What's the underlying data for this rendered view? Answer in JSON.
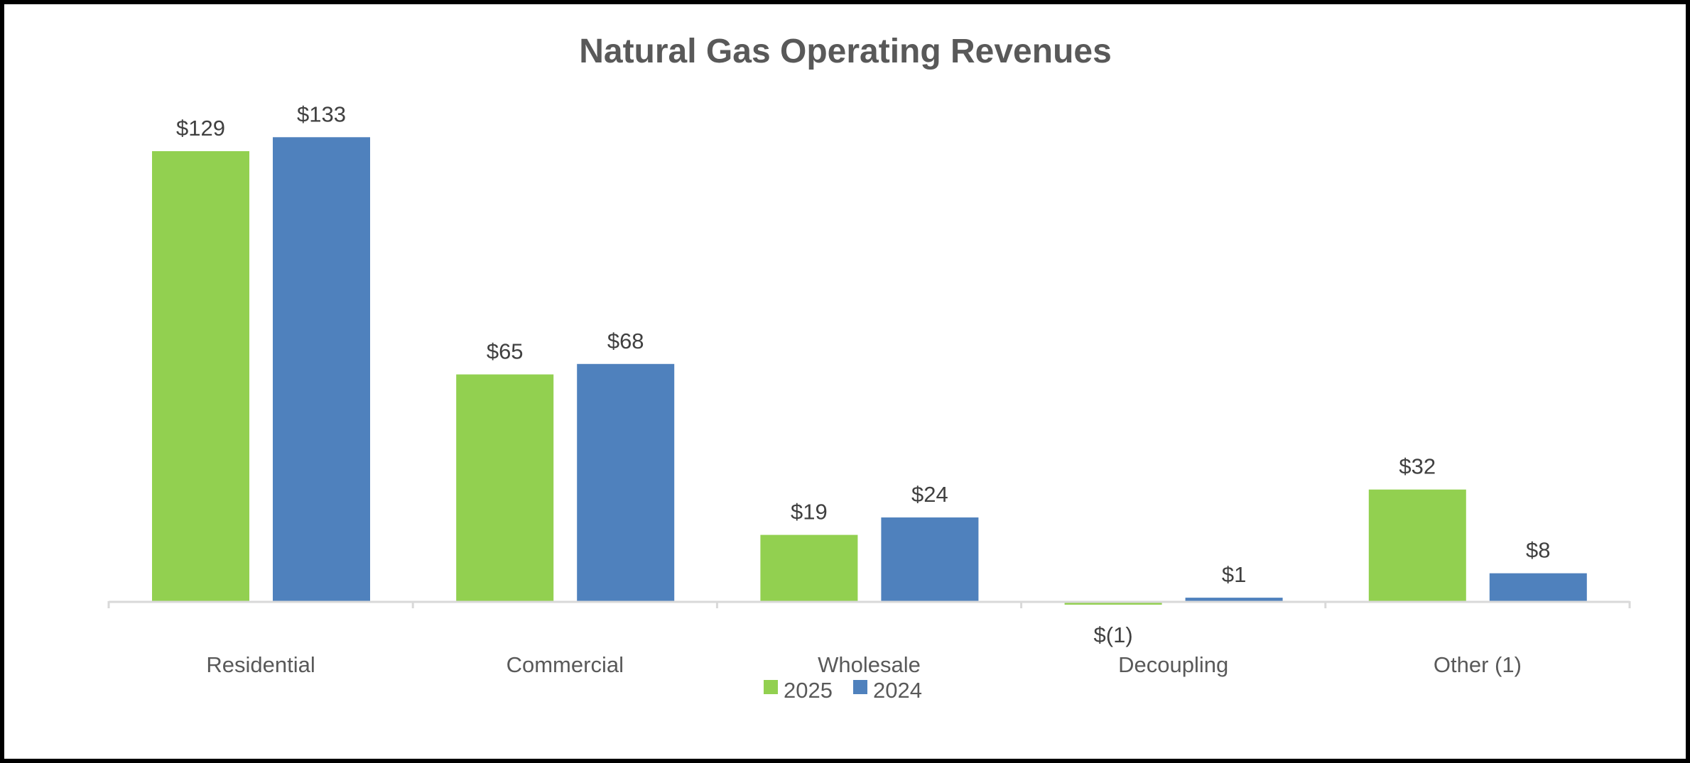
{
  "chart_data": {
    "type": "bar",
    "title": "Natural Gas Operating Revenues",
    "categories": [
      "Residential",
      "Commercial",
      "Wholesale",
      "Decoupling",
      "Other (1)"
    ],
    "series": [
      {
        "name": "2025",
        "color": "#92D050",
        "values": [
          129,
          65,
          19,
          -1,
          32
        ],
        "labels": [
          "$129",
          "$65",
          "$19",
          "$(1)",
          "$32"
        ]
      },
      {
        "name": "2024",
        "color": "#4F81BD",
        "values": [
          133,
          68,
          24,
          1,
          8
        ],
        "labels": [
          "$133",
          "$68",
          "$24",
          "$1",
          "$8"
        ]
      }
    ],
    "xlabel": "",
    "ylabel": "",
    "ylim": [
      -1,
      140
    ],
    "grid": false,
    "legend": "bottom-center"
  }
}
